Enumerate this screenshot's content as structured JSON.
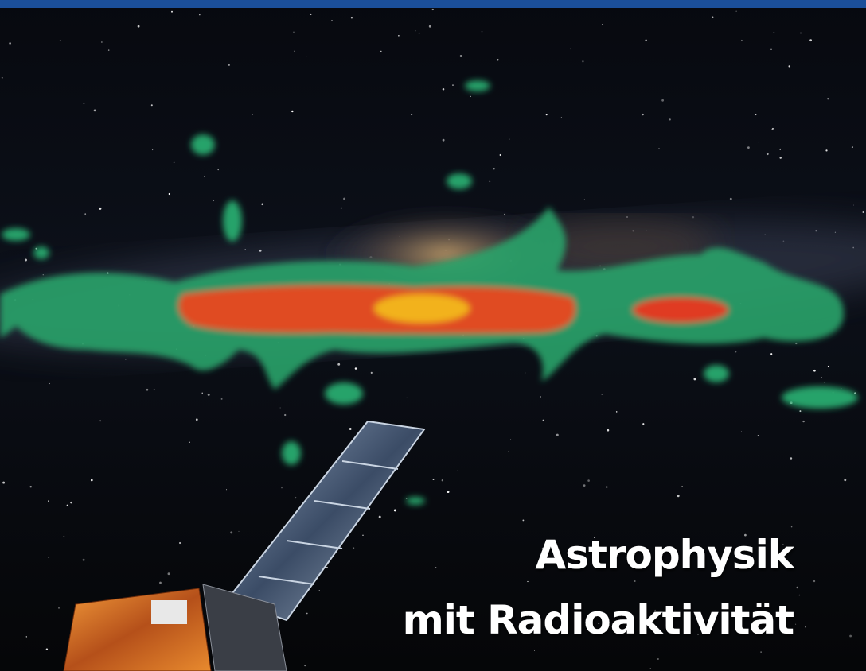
{
  "title": {
    "line1": "Astrophysik",
    "line2": "mit Radioaktivität"
  }
}
